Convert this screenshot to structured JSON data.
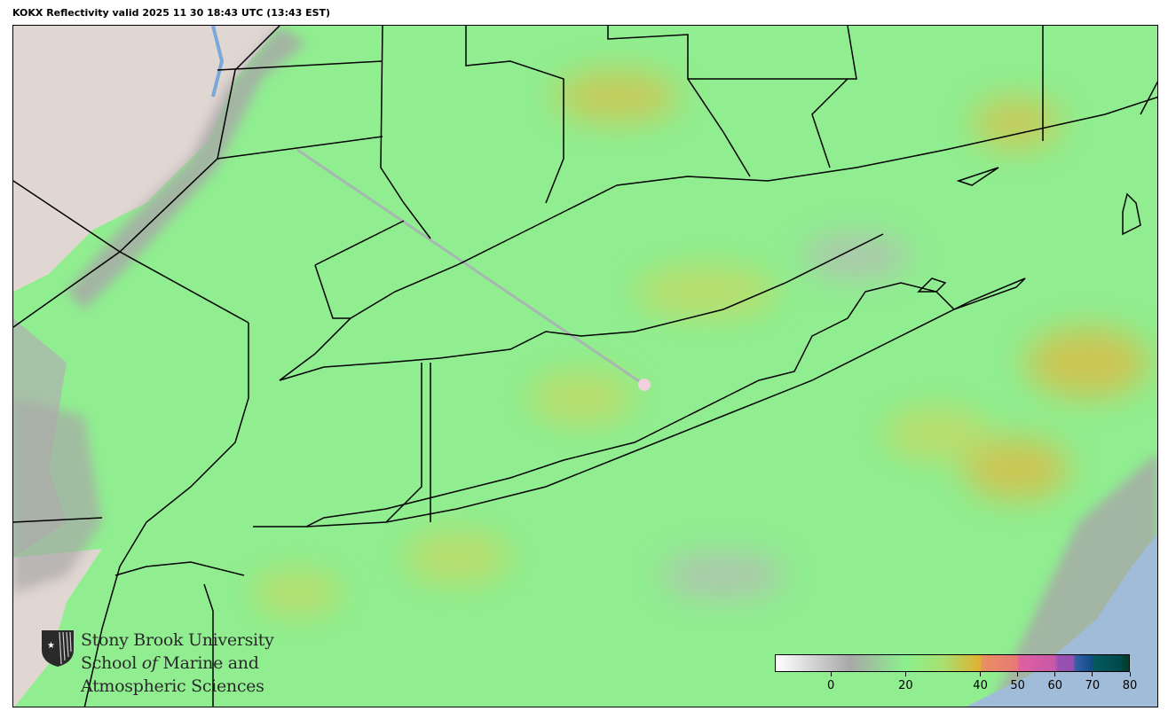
{
  "title": "KOKX Reflectivity valid 2025 11 30 18:43 UTC (13:43 EST)",
  "logo": {
    "line1": "Stony Brook University",
    "line2_a": "School ",
    "line2_b": "of",
    "line2_c": " Marine and",
    "line3": "Atmospheric Sciences"
  },
  "colorbar": {
    "range": [
      -15,
      80
    ],
    "ticks": [
      0,
      20,
      40,
      50,
      60,
      70,
      80
    ],
    "tick_labels": [
      "0",
      "20",
      "40",
      "50",
      "60",
      "70",
      "80"
    ],
    "stops": [
      {
        "value": -15,
        "color": "#ffffff"
      },
      {
        "value": 5,
        "color": "#a8a8a8"
      },
      {
        "value": 20,
        "color": "#8cf08c"
      },
      {
        "value": 30,
        "color": "#a8e070"
      },
      {
        "value": 40,
        "color": "#e0b030"
      },
      {
        "value": 40.5,
        "color": "#e89060"
      },
      {
        "value": 50,
        "color": "#e87878"
      },
      {
        "value": 50.5,
        "color": "#e060a0"
      },
      {
        "value": 60,
        "color": "#c858a8"
      },
      {
        "value": 61,
        "color": "#9850b0"
      },
      {
        "value": 65,
        "color": "#9850b0"
      },
      {
        "value": 65.5,
        "color": "#3860a8"
      },
      {
        "value": 70,
        "color": "#104c88"
      },
      {
        "value": 70.5,
        "color": "#045a60"
      },
      {
        "value": 78,
        "color": "#004848"
      },
      {
        "value": 78.5,
        "color": "#004030"
      },
      {
        "value": 80,
        "color": "#004030"
      }
    ]
  },
  "colors": {
    "echo_base": "#90ee90",
    "echo_moderate": "#c8d860",
    "clutter_gray": "#a8a8a8",
    "terrain": "#e0d4d0",
    "ocean": "#a0bcd8",
    "radar_site": "#f0d0dc"
  }
}
